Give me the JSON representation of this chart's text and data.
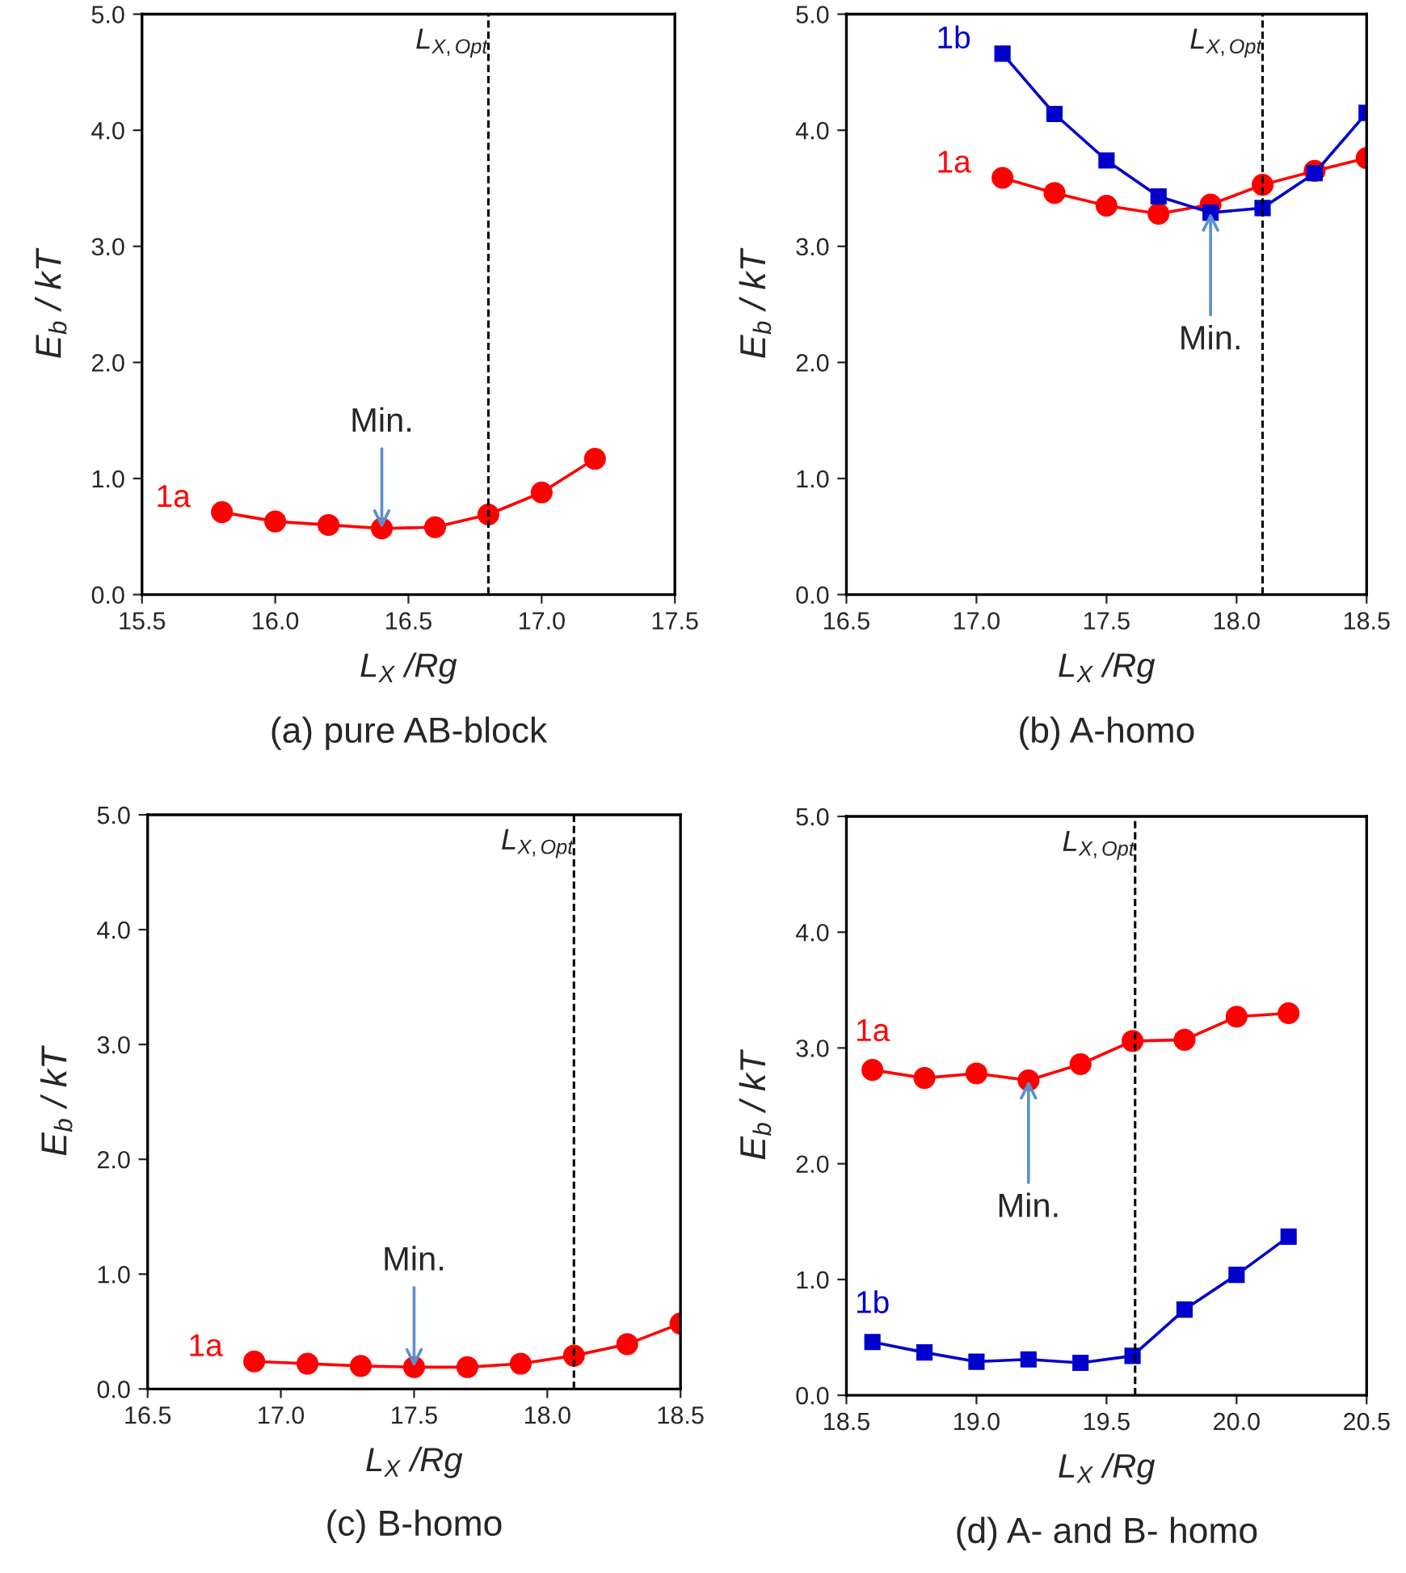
{
  "chart_data": [
    {
      "type": "line",
      "title": "(a) pure AB-block",
      "xlabel": "L$_{X}$ /Rg",
      "ylabel": "E$_{b}$ / kT",
      "xlim": [
        15.5,
        17.5
      ],
      "xticks": [
        {
          "value": 15.5,
          "label": "15.5"
        },
        {
          "value": 16.0,
          "label": "16.0"
        },
        {
          "value": 16.5,
          "label": "16.5"
        },
        {
          "value": 17.0,
          "label": "17.0"
        },
        {
          "value": 17.5,
          "label": "17.5"
        }
      ],
      "ylim": [
        0,
        5
      ],
      "yticks": [
        {
          "value": 0,
          "label": "0.0"
        },
        {
          "value": 1,
          "label": "1.0"
        },
        {
          "value": 2,
          "label": "2.0"
        },
        {
          "value": 3,
          "label": "3.0"
        },
        {
          "value": 4,
          "label": "4.0"
        },
        {
          "value": 5,
          "label": "5.0"
        }
      ],
      "grid": false,
      "legend": false,
      "series": [
        {
          "name": "1a",
          "color": "#ff0000",
          "marker": "circle",
          "x": [
            15.8,
            16.0,
            16.2,
            16.4,
            16.6,
            16.8,
            17.0,
            17.2
          ],
          "values": [
            0.71,
            0.63,
            0.6,
            0.57,
            0.58,
            0.69,
            0.88,
            1.17
          ]
        }
      ],
      "ref_lines": [
        {
          "axis": "x",
          "value": 16.8,
          "label": "L$_{X,Opt}$",
          "color": "#000000",
          "line_style": "dashed"
        }
      ],
      "annotations": [
        {
          "text": "Min.",
          "x": 16.4,
          "y": 0.57
        }
      ]
    },
    {
      "type": "line",
      "title": "(b) A-homo",
      "xlabel": "L$_{X}$ /Rg",
      "ylabel": "E$_{b}$ / kT",
      "xlim": [
        16.5,
        18.5
      ],
      "xticks": [
        {
          "value": 16.5,
          "label": "16.5"
        },
        {
          "value": 17.0,
          "label": "17.0"
        },
        {
          "value": 17.5,
          "label": "17.5"
        },
        {
          "value": 18.0,
          "label": "18.0"
        },
        {
          "value": 18.5,
          "label": "18.5"
        }
      ],
      "ylim": [
        0,
        5
      ],
      "yticks": [
        {
          "value": 0,
          "label": "0.0"
        },
        {
          "value": 1,
          "label": "1.0"
        },
        {
          "value": 2,
          "label": "2.0"
        },
        {
          "value": 3,
          "label": "3.0"
        },
        {
          "value": 4,
          "label": "4.0"
        },
        {
          "value": 5,
          "label": "5.0"
        }
      ],
      "grid": false,
      "legend": false,
      "series": [
        {
          "name": "1a",
          "color": "#ff0000",
          "marker": "circle",
          "x": [
            17.1,
            17.3,
            17.5,
            17.7,
            17.9,
            18.1,
            18.3,
            18.5
          ],
          "values": [
            3.59,
            3.46,
            3.35,
            3.28,
            3.36,
            3.53,
            3.65,
            3.76
          ]
        },
        {
          "name": "1b",
          "color": "#0000cc",
          "marker": "square",
          "x": [
            17.1,
            17.3,
            17.5,
            17.7,
            17.9,
            18.1,
            18.3,
            18.5
          ],
          "values": [
            4.66,
            4.14,
            3.74,
            3.43,
            3.29,
            3.33,
            3.63,
            4.15
          ]
        }
      ],
      "ref_lines": [
        {
          "axis": "x",
          "value": 18.1,
          "label": "L$_{X,Opt}$",
          "color": "#000000",
          "line_style": "dashed"
        }
      ],
      "annotations": [
        {
          "text": "Min.",
          "x": 17.9,
          "y": 3.29
        }
      ]
    },
    {
      "type": "line",
      "title": "(c) B-homo",
      "xlabel": "L$_{X}$ /Rg",
      "ylabel": "E$_{b}$ / kT",
      "xlim": [
        16.5,
        18.5
      ],
      "xticks": [
        {
          "value": 16.5,
          "label": "16.5"
        },
        {
          "value": 17.0,
          "label": "17.0"
        },
        {
          "value": 17.5,
          "label": "17.5"
        },
        {
          "value": 18.0,
          "label": "18.0"
        },
        {
          "value": 18.5,
          "label": "18.5"
        }
      ],
      "ylim": [
        0,
        5
      ],
      "yticks": [
        {
          "value": 0,
          "label": "0.0"
        },
        {
          "value": 1,
          "label": "1.0"
        },
        {
          "value": 2,
          "label": "2.0"
        },
        {
          "value": 3,
          "label": "3.0"
        },
        {
          "value": 4,
          "label": "4.0"
        },
        {
          "value": 5,
          "label": "5.0"
        }
      ],
      "grid": false,
      "legend": false,
      "series": [
        {
          "name": "1a",
          "color": "#ff0000",
          "marker": "circle",
          "x": [
            16.9,
            17.1,
            17.3,
            17.5,
            17.7,
            17.9,
            18.1,
            18.3,
            18.5
          ],
          "values": [
            0.24,
            0.22,
            0.2,
            0.19,
            0.19,
            0.22,
            0.29,
            0.39,
            0.57
          ]
        }
      ],
      "ref_lines": [
        {
          "axis": "x",
          "value": 18.1,
          "label": "L$_{X,Opt}$",
          "color": "#000000",
          "line_style": "dashed"
        }
      ],
      "annotations": [
        {
          "text": "Min.",
          "x": 17.5,
          "y": 0.19
        }
      ]
    },
    {
      "type": "line",
      "title": "(d) A- and B- homo",
      "xlabel": "L$_{X}$ /Rg",
      "ylabel": "E$_{b}$ / kT",
      "xlim": [
        18.5,
        20.5
      ],
      "xticks": [
        {
          "value": 18.5,
          "label": "18.5"
        },
        {
          "value": 19.0,
          "label": "19.0"
        },
        {
          "value": 19.5,
          "label": "19.5"
        },
        {
          "value": 20.0,
          "label": "20.0"
        },
        {
          "value": 20.5,
          "label": "20.5"
        }
      ],
      "ylim": [
        0,
        5
      ],
      "yticks": [
        {
          "value": 0,
          "label": "0.0"
        },
        {
          "value": 1,
          "label": "1.0"
        },
        {
          "value": 2,
          "label": "2.0"
        },
        {
          "value": 3,
          "label": "3.0"
        },
        {
          "value": 4,
          "label": "4.0"
        },
        {
          "value": 5,
          "label": "5.0"
        }
      ],
      "grid": false,
      "legend": false,
      "series": [
        {
          "name": "1a",
          "color": "#ff0000",
          "marker": "circle",
          "x": [
            18.6,
            18.8,
            19.0,
            19.2,
            19.4,
            19.6,
            19.8,
            20.0,
            20.2
          ],
          "values": [
            2.81,
            2.74,
            2.78,
            2.72,
            2.86,
            3.06,
            3.07,
            3.27,
            3.3
          ]
        },
        {
          "name": "1b",
          "color": "#0000cc",
          "marker": "square",
          "x": [
            18.6,
            18.8,
            19.0,
            19.2,
            19.4,
            19.6,
            19.8,
            20.0,
            20.2
          ],
          "values": [
            0.46,
            0.37,
            0.29,
            0.31,
            0.28,
            0.34,
            0.74,
            1.04,
            1.37
          ]
        }
      ],
      "ref_lines": [
        {
          "axis": "x",
          "value": 19.61,
          "label": "L$_{X,Opt}$",
          "color": "#000000",
          "line_style": "dashed"
        }
      ],
      "annotations": [
        {
          "text": "Min.",
          "x": 19.2,
          "y": 2.72
        }
      ]
    }
  ]
}
